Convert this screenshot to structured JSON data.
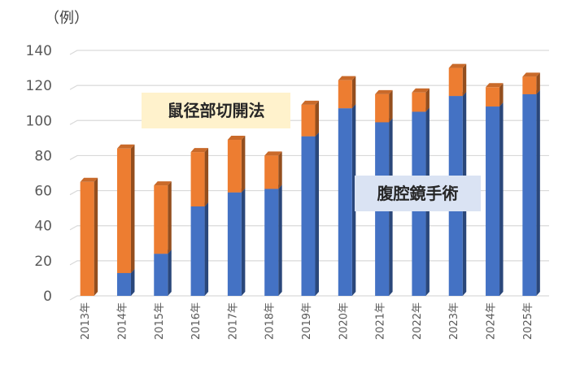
{
  "chart_data": {
    "type": "bar",
    "stacked": true,
    "three_d": true,
    "unit_label": "（例）",
    "categories": [
      "2013年",
      "2014年",
      "2015年",
      "2016年",
      "2017年",
      "2018年",
      "2019年",
      "2020年",
      "2021年",
      "2022年",
      "2023年",
      "2024年",
      "2025年"
    ],
    "series": [
      {
        "name": "腹腔鏡手術",
        "color": "#4472C4",
        "values": [
          0,
          13,
          24,
          51,
          59,
          61,
          91,
          107,
          99,
          105,
          114,
          108,
          115
        ]
      },
      {
        "name": "鼠径部切開法",
        "color": "#ED7D31",
        "values": [
          65,
          71,
          39,
          31,
          30,
          19,
          18,
          16,
          16,
          11,
          16,
          11,
          10
        ]
      }
    ],
    "ylim": [
      0,
      140
    ],
    "yticks": [
      0,
      20,
      40,
      60,
      80,
      100,
      120,
      140
    ],
    "grid": true,
    "annotations": [
      {
        "text": "鼠径部切開法",
        "background": "#FFF2CC",
        "series": "鼠径部切開法"
      },
      {
        "text": "腹腔鏡手術",
        "background": "#DAE3F3",
        "series": "腹腔鏡手術"
      }
    ]
  }
}
